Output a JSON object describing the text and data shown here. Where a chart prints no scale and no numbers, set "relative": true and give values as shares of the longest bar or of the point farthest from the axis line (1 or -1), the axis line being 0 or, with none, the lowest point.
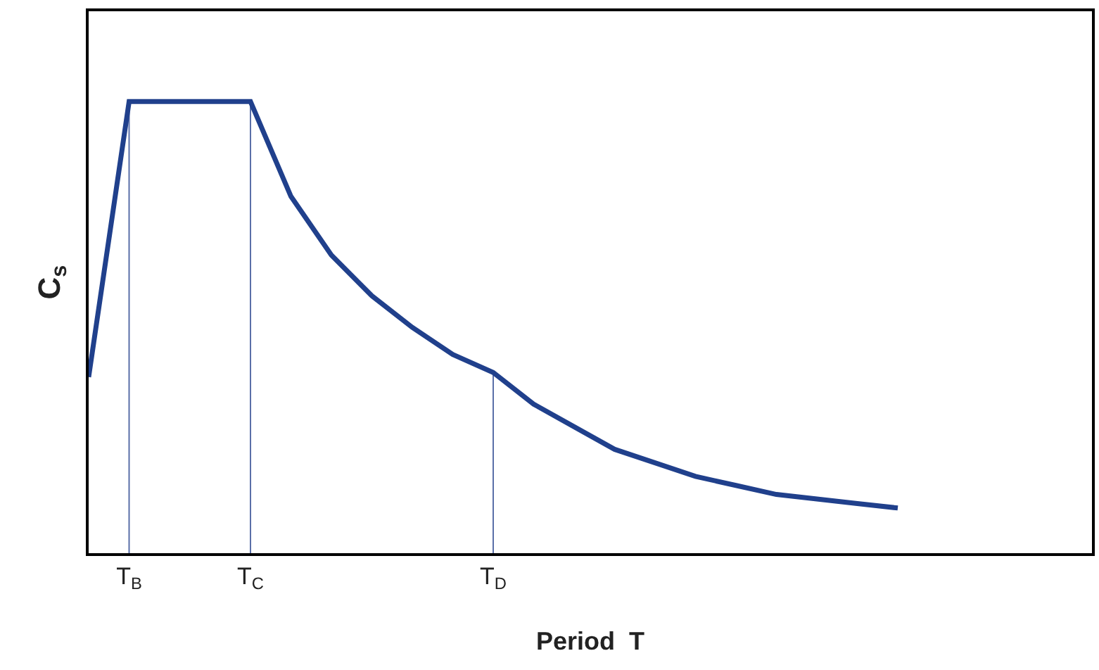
{
  "chart_data": {
    "type": "line",
    "relative": true,
    "xlabel": "Period  T",
    "ylabel": "C$_{s}$",
    "categories": [
      null,
      "T$_{B}$",
      null,
      null,
      "T$_{C}$",
      null,
      null,
      null,
      null,
      null,
      "T$_{D}$",
      null,
      null,
      null,
      null,
      null,
      null,
      null,
      null,
      null,
      null,
      null,
      null,
      null,
      null
    ],
    "tick_labels": "x",
    "grid": false,
    "marker": "none",
    "line_style": "solid",
    "ref_lines": [
      {
        "axis": "x",
        "value": "T$_{B}$",
        "color": "#5a6fa8"
      },
      {
        "axis": "x",
        "value": "T$_{C}$",
        "color": "#5a6fa8"
      },
      {
        "axis": "x",
        "value": "T$_{D}$",
        "color": "#5a6fa8"
      }
    ],
    "series": [
      {
        "color": "#20408c",
        "values": [
          0.39,
          1,
          1,
          1,
          1,
          0.79,
          0.66,
          0.57,
          0.5,
          0.44,
          0.4,
          0.33,
          0.28,
          0.23,
          0.2,
          0.17,
          0.15,
          0.13,
          0.12,
          0.11,
          0.1,
          null,
          null,
          null,
          null
        ]
      }
    ]
  }
}
